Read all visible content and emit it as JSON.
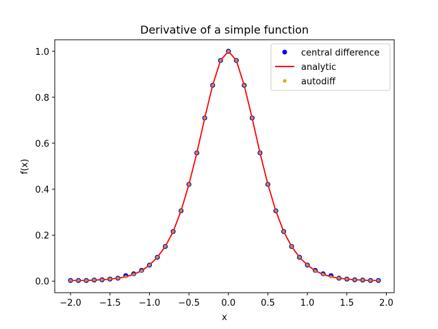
{
  "chart_data": {
    "type": "scatter",
    "title": "Derivative of a simple function",
    "xlabel": "x",
    "ylabel": "f(x)",
    "xlim": [
      -2.2,
      2.1
    ],
    "ylim": [
      -0.05,
      1.05
    ],
    "xticks": [
      -2.0,
      -1.5,
      -1.0,
      -0.5,
      0.0,
      0.5,
      1.0,
      1.5,
      2.0
    ],
    "xtick_labels": [
      "−2.0",
      "−1.5",
      "−1.0",
      "−0.5",
      "0.0",
      "0.5",
      "1.0",
      "1.5",
      "2.0"
    ],
    "yticks": [
      0.0,
      0.2,
      0.4,
      0.6,
      0.8,
      1.0
    ],
    "ytick_labels": [
      "0.0",
      "0.2",
      "0.4",
      "0.6",
      "0.8",
      "1.0"
    ],
    "grid": false,
    "legend": "top-right",
    "x": [
      -2.0,
      -1.9,
      -1.8,
      -1.7,
      -1.6,
      -1.5,
      -1.4,
      -1.3,
      -1.2,
      -1.1,
      -1.0,
      -0.9,
      -0.8,
      -0.7,
      -0.6,
      -0.5,
      -0.4,
      -0.3,
      -0.2,
      -0.1,
      0.0,
      0.1,
      0.2,
      0.3,
      0.4,
      0.5,
      0.6,
      0.7,
      0.8,
      0.9,
      1.0,
      1.1,
      1.2,
      1.3,
      1.4,
      1.5,
      1.6,
      1.7,
      1.8,
      1.9
    ],
    "series": [
      {
        "name": "central difference",
        "kind": "scatter",
        "color": "#0000ff",
        "values": [
          0.003,
          0.003,
          0.003,
          0.005,
          0.006,
          0.009,
          0.013,
          0.024,
          0.032,
          0.047,
          0.07,
          0.104,
          0.151,
          0.216,
          0.306,
          0.421,
          0.558,
          0.71,
          0.852,
          0.96,
          1.0,
          0.96,
          0.852,
          0.71,
          0.558,
          0.421,
          0.306,
          0.216,
          0.151,
          0.104,
          0.07,
          0.047,
          0.032,
          0.024,
          0.013,
          0.009,
          0.006,
          0.005,
          0.003,
          0.003
        ]
      },
      {
        "name": "analytic",
        "kind": "line",
        "color": "#ff0000",
        "values": [
          0.003,
          0.003,
          0.003,
          0.005,
          0.006,
          0.009,
          0.013,
          0.019,
          0.03,
          0.045,
          0.07,
          0.104,
          0.151,
          0.216,
          0.306,
          0.421,
          0.558,
          0.71,
          0.852,
          0.96,
          1.0,
          0.96,
          0.852,
          0.71,
          0.558,
          0.421,
          0.306,
          0.216,
          0.151,
          0.104,
          0.07,
          0.045,
          0.03,
          0.019,
          0.013,
          0.009,
          0.006,
          0.005,
          0.003,
          0.003
        ]
      },
      {
        "name": "autodiff",
        "kind": "scatter",
        "color": "#c8b400",
        "values": [
          0.003,
          0.003,
          0.003,
          0.005,
          0.006,
          0.009,
          0.013,
          0.019,
          0.03,
          0.045,
          0.07,
          0.104,
          0.151,
          0.216,
          0.306,
          0.421,
          0.558,
          0.71,
          0.852,
          0.96,
          1.0,
          0.96,
          0.852,
          0.71,
          0.558,
          0.421,
          0.306,
          0.216,
          0.151,
          0.104,
          0.07,
          0.045,
          0.03,
          0.019,
          0.013,
          0.009,
          0.006,
          0.005,
          0.003,
          0.003
        ]
      }
    ]
  }
}
